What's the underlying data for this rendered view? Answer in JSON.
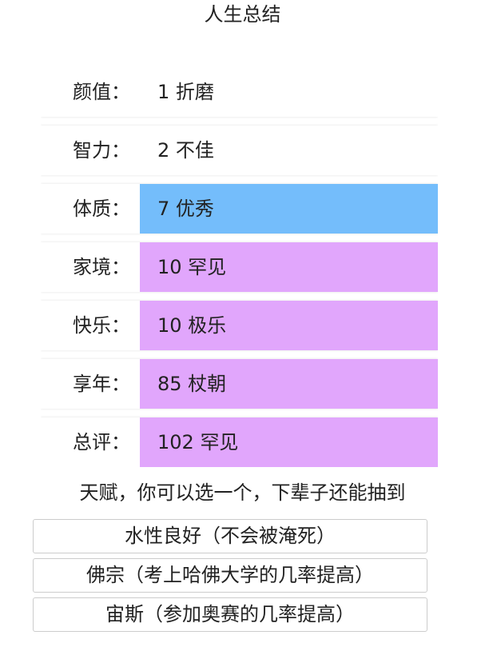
{
  "title": "人生总结",
  "stats": [
    {
      "label": "颜值：",
      "value": "1 折磨",
      "color": "#ffffff"
    },
    {
      "label": "智力：",
      "value": "2 不佳",
      "color": "#ffffff"
    },
    {
      "label": "体质：",
      "value": "7 优秀",
      "color": "#74bdfb"
    },
    {
      "label": "家境：",
      "value": "10 罕见",
      "color": "#e1a6fc"
    },
    {
      "label": "快乐：",
      "value": "10 极乐",
      "color": "#e1a6fc"
    },
    {
      "label": "享年：",
      "value": "85 杖朝",
      "color": "#e1a6fc"
    },
    {
      "label": "总评：",
      "value": "102 罕见",
      "color": "#e1a6fc"
    }
  ],
  "talent_prompt": "天赋，你可以选一个，下辈子还能抽到",
  "talents": [
    "水性良好（不会被淹死）",
    "佛宗（考上哈佛大学的几率提高）",
    "宙斯（参加奥赛的几率提高）"
  ]
}
